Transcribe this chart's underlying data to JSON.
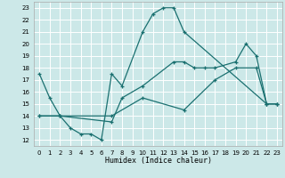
{
  "xlabel": "Humidex (Indice chaleur)",
  "bg_color": "#cce8e8",
  "grid_color": "#ffffff",
  "line_color": "#1a7070",
  "line1_x": [
    0,
    1,
    2,
    3,
    4,
    5,
    6,
    7,
    8,
    10,
    11,
    12,
    13,
    14,
    22,
    23
  ],
  "line1_y": [
    17.5,
    15.5,
    14.0,
    13.0,
    12.5,
    12.5,
    12.0,
    17.5,
    16.5,
    21.0,
    22.5,
    23.0,
    23.0,
    21.0,
    15.0,
    15.0
  ],
  "line2_x": [
    0,
    2,
    7,
    8,
    10,
    13,
    14,
    15,
    16,
    17,
    19,
    20,
    21,
    22,
    23
  ],
  "line2_y": [
    14.0,
    14.0,
    13.5,
    15.5,
    16.5,
    18.5,
    18.5,
    18.0,
    18.0,
    18.0,
    18.5,
    20.0,
    19.0,
    15.0,
    15.0
  ],
  "line3_x": [
    0,
    2,
    7,
    10,
    14,
    17,
    19,
    21,
    22,
    23
  ],
  "line3_y": [
    14.0,
    14.0,
    14.0,
    15.5,
    14.5,
    17.0,
    18.0,
    18.0,
    15.0,
    15.0
  ],
  "xlim": [
    -0.5,
    23.5
  ],
  "ylim": [
    11.5,
    23.5
  ],
  "xticks": [
    0,
    1,
    2,
    3,
    4,
    5,
    6,
    7,
    8,
    9,
    10,
    11,
    12,
    13,
    14,
    15,
    16,
    17,
    18,
    19,
    20,
    21,
    22,
    23
  ],
  "yticks": [
    12,
    13,
    14,
    15,
    16,
    17,
    18,
    19,
    20,
    21,
    22,
    23
  ]
}
